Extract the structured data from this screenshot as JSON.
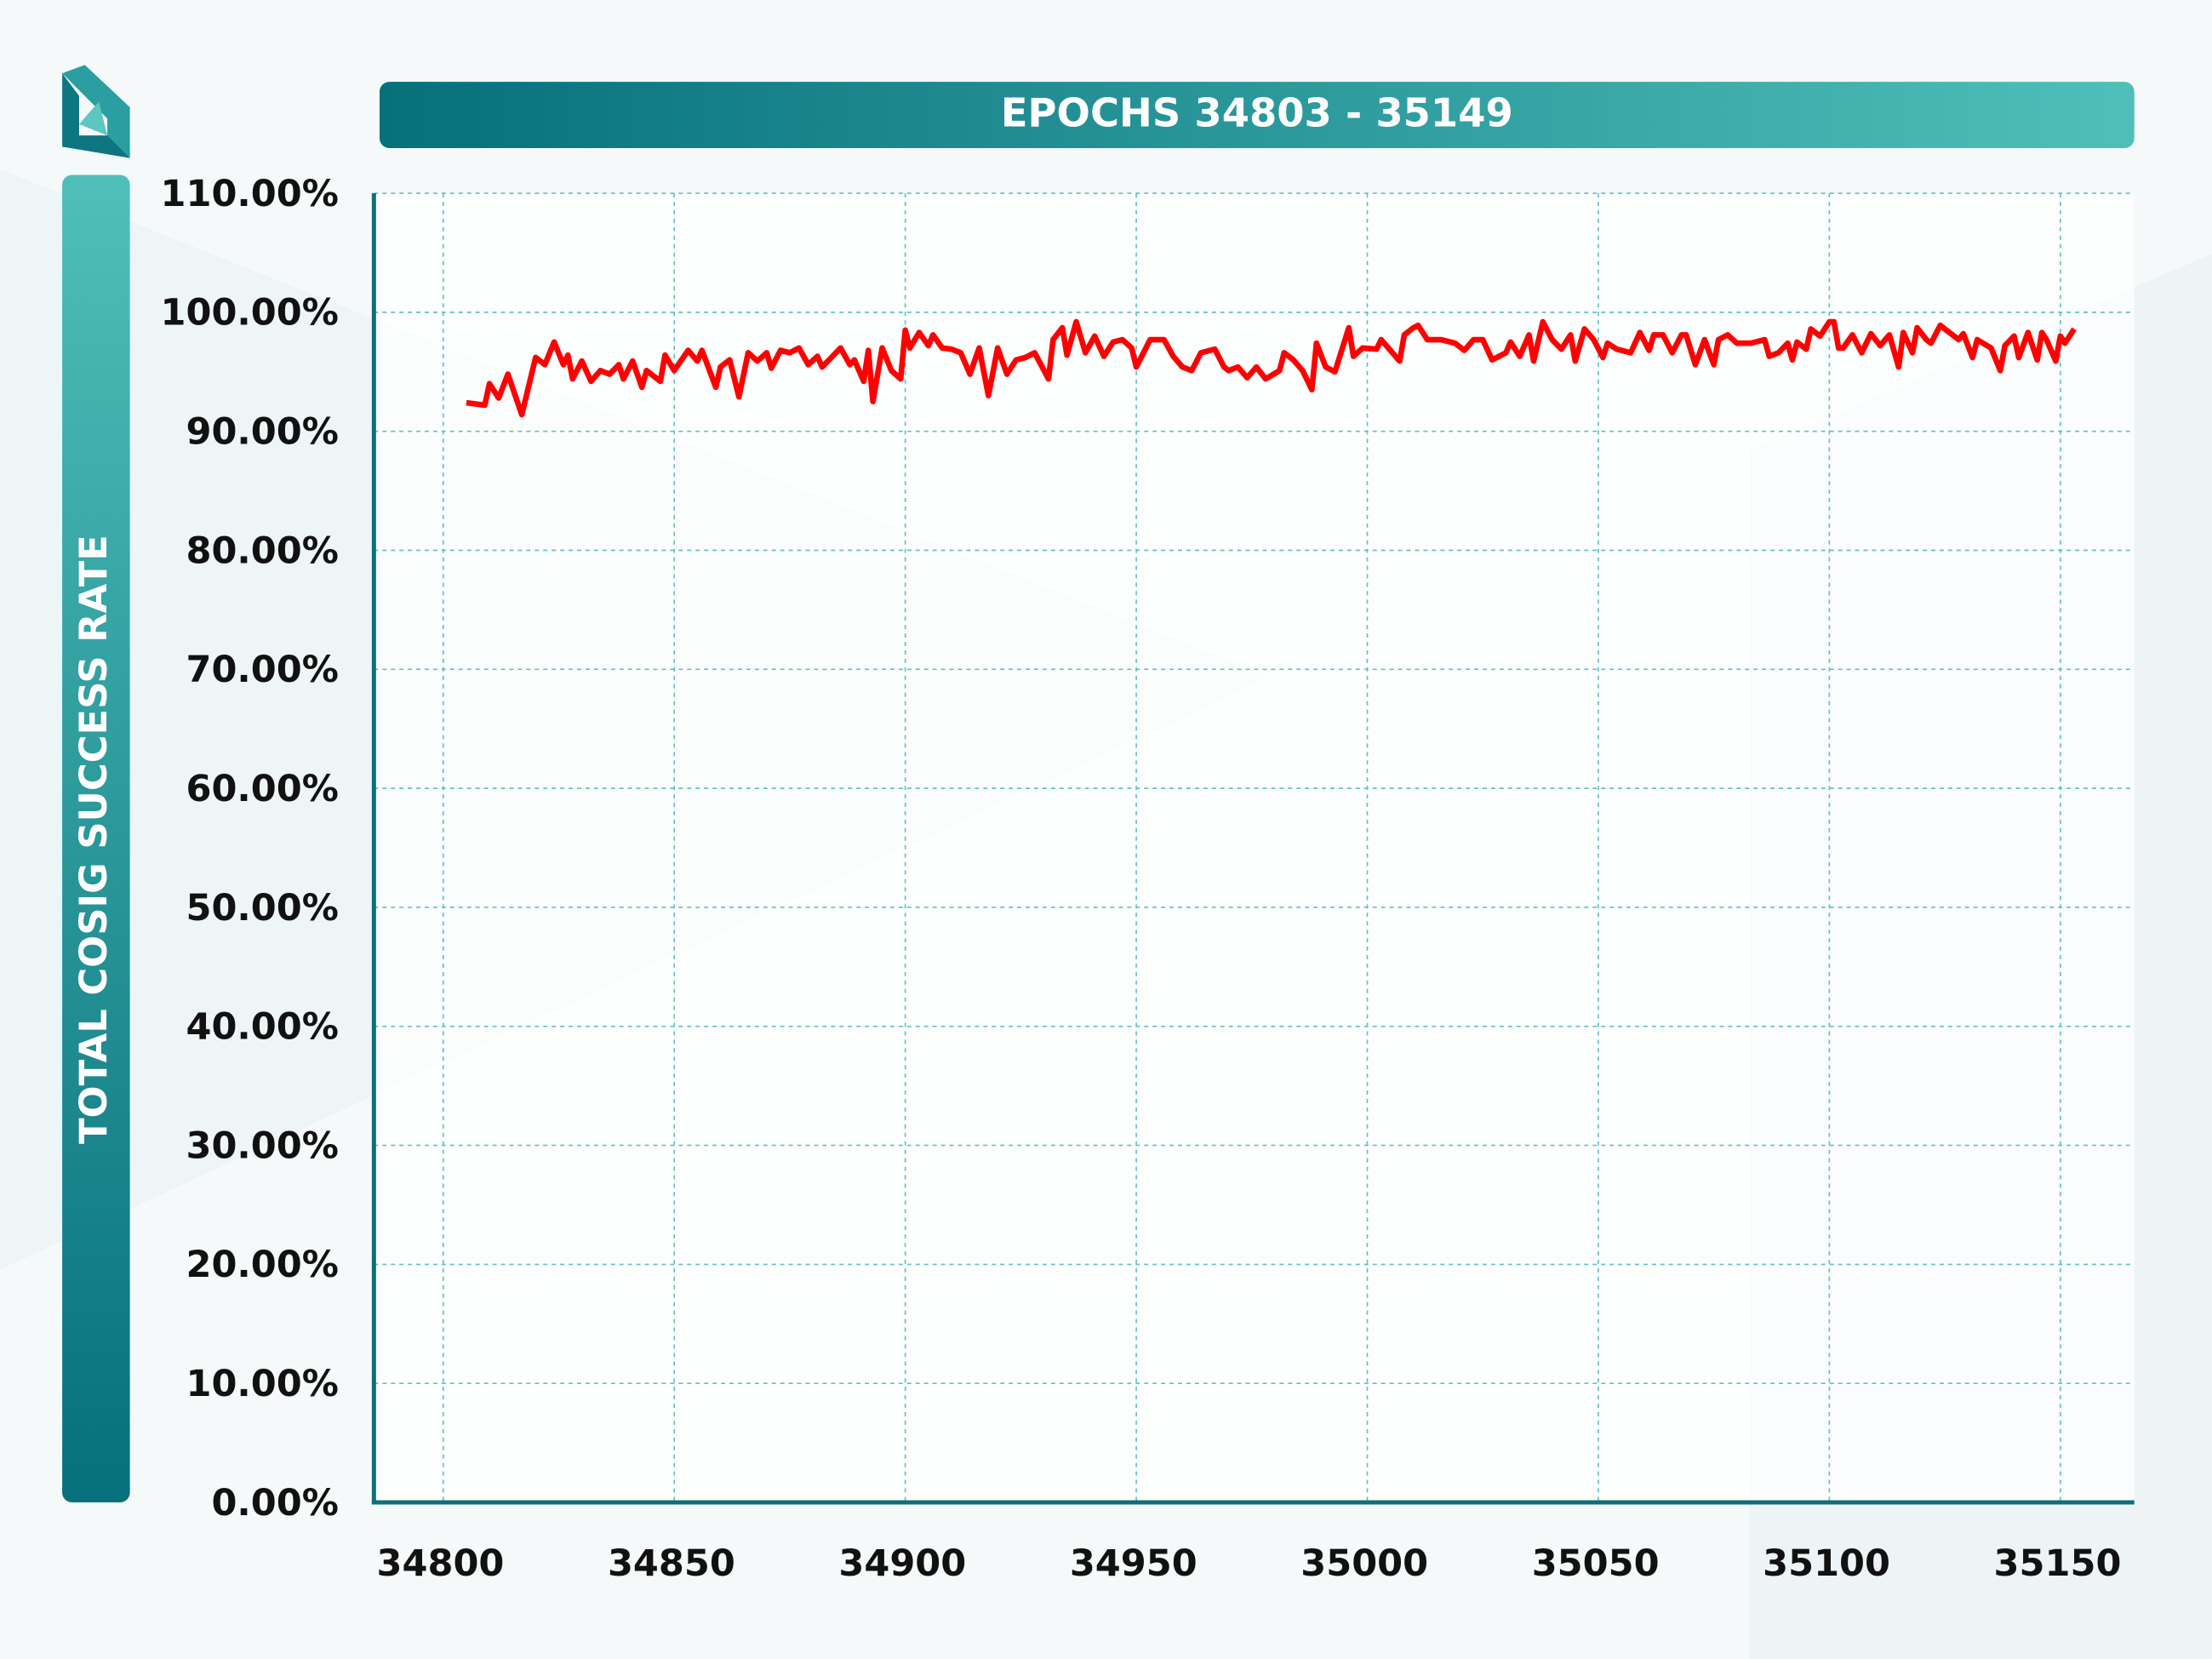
{
  "chart_data": {
    "type": "line",
    "title": "EPOCHS 34803 - 35149",
    "y_label": "TOTAL COSIG SUCCESS RATE",
    "color": "#ff0000",
    "grid": true,
    "xlim": [
      34785,
      35166
    ],
    "xticks": [
      34800,
      34850,
      34900,
      34950,
      35000,
      35050,
      35100,
      35150
    ],
    "ylim": [
      0,
      110
    ],
    "yticks": [
      {
        "value": 0,
        "label": "0.00%"
      },
      {
        "value": 10,
        "label": "10.00%"
      },
      {
        "value": 20,
        "label": "20.00%"
      },
      {
        "value": 30,
        "label": "30.00%"
      },
      {
        "value": 40,
        "label": "40.00%"
      },
      {
        "value": 50,
        "label": "50.00%"
      },
      {
        "value": 60,
        "label": "60.00%"
      },
      {
        "value": 70,
        "label": "70.00%"
      },
      {
        "value": 80,
        "label": "80.00%"
      },
      {
        "value": 90,
        "label": "90.00%"
      },
      {
        "value": 100,
        "label": "100.00%"
      },
      {
        "value": 110,
        "label": "110.00%"
      }
    ],
    "x": [
      34805,
      34809,
      34810,
      34812,
      34814,
      34817,
      34820,
      34822,
      34824,
      34826,
      34827,
      34828,
      34830,
      34832,
      34834,
      34836,
      34838,
      34839,
      34841,
      34843,
      34844,
      34847,
      34848,
      34850,
      34853,
      34855,
      34856,
      34859,
      34860,
      34862,
      34864,
      34866,
      34868,
      34870,
      34871,
      34873,
      34875,
      34877,
      34879,
      34881,
      34882,
      34884,
      34886,
      34888,
      34889,
      34891,
      34892,
      34893,
      34895,
      34897,
      34899,
      34900,
      34901,
      34903,
      34905,
      34906,
      34908,
      34910,
      34912,
      34914,
      34916,
      34918,
      34920,
      34922,
      34924,
      34926,
      34928,
      34931,
      34932,
      34934,
      34935,
      34937,
      34939,
      34941,
      34943,
      34945,
      34947,
      34949,
      34950,
      34953,
      34956,
      34958,
      34960,
      34962,
      34964,
      34967,
      34969,
      34970,
      34972,
      34974,
      34976,
      34978,
      34981,
      34982,
      34984,
      34986,
      34988,
      34989,
      34991,
      34993,
      34996,
      34997,
      34999,
      35002,
      35003,
      35005,
      35007,
      35008,
      35010,
      35011,
      35013,
      35016,
      35019,
      35021,
      35023,
      35025,
      35027,
      35030,
      35031,
      35033,
      35035,
      35036,
      35038,
      35040,
      35042,
      35044,
      35045,
      35047,
      35049,
      35051,
      35052,
      35054,
      35057,
      35059,
      35061,
      35062,
      35064,
      35066,
      35068,
      35069,
      35071,
      35073,
      35075,
      35076,
      35078,
      35080,
      35083,
      35086,
      35087,
      35089,
      35091,
      35092,
      35093,
      35095,
      35096,
      35098,
      35100,
      35101,
      35102,
      35103,
      35105,
      35107,
      35109,
      35111,
      35113,
      35115,
      35116,
      35118,
      35119,
      35121,
      35122,
      35124,
      35126,
      35128,
      35129,
      35131,
      35132,
      35135,
      35137,
      35138,
      35140,
      35141,
      35143,
      35145,
      35146,
      35147,
      35149,
      35150,
      35151,
      35153
    ],
    "values": [
      92.4,
      92.2,
      94.0,
      92.8,
      94.8,
      91.4,
      96.2,
      95.6,
      97.5,
      95.6,
      96.4,
      94.4,
      95.9,
      94.2,
      95.1,
      94.8,
      95.6,
      94.4,
      95.9,
      93.7,
      95.1,
      94.2,
      96.4,
      95.1,
      96.8,
      95.9,
      96.8,
      93.7,
      95.4,
      96.0,
      92.9,
      96.6,
      95.9,
      96.6,
      95.3,
      96.8,
      96.6,
      97.0,
      95.6,
      96.3,
      95.4,
      96.2,
      97.0,
      95.6,
      96.0,
      94.2,
      96.8,
      92.5,
      97.0,
      95.1,
      94.4,
      98.5,
      97.0,
      98.3,
      97.2,
      98.1,
      97.0,
      96.9,
      96.6,
      94.8,
      97.0,
      93.0,
      97.0,
      94.8,
      96.0,
      96.2,
      96.6,
      94.4,
      97.7,
      98.7,
      96.4,
      99.2,
      96.6,
      98.0,
      96.3,
      97.5,
      97.7,
      97.0,
      95.4,
      97.7,
      97.7,
      96.3,
      95.4,
      95.1,
      96.6,
      96.9,
      95.4,
      95.1,
      95.4,
      94.5,
      95.4,
      94.4,
      95.1,
      96.6,
      96.0,
      95.1,
      93.5,
      97.4,
      95.4,
      95.0,
      98.7,
      96.3,
      97.0,
      96.9,
      97.7,
      96.8,
      95.9,
      98.1,
      98.7,
      98.9,
      97.7,
      97.7,
      97.4,
      96.8,
      97.7,
      97.7,
      96.0,
      96.6,
      97.5,
      96.3,
      98.1,
      95.9,
      99.2,
      97.7,
      96.9,
      98.1,
      95.9,
      98.6,
      97.7,
      96.2,
      97.4,
      96.9,
      96.6,
      98.3,
      96.8,
      98.1,
      98.1,
      96.6,
      98.1,
      98.1,
      95.6,
      97.7,
      95.6,
      97.7,
      98.1,
      97.4,
      97.4,
      97.7,
      96.3,
      96.6,
      97.4,
      96.0,
      97.5,
      96.9,
      98.6,
      98.0,
      99.2,
      99.2,
      97.0,
      97.0,
      98.1,
      96.6,
      98.2,
      97.2,
      98.1,
      95.4,
      98.3,
      96.6,
      98.7,
      97.7,
      97.4,
      98.9,
      98.3,
      97.7,
      98.2,
      96.2,
      97.7,
      97.0,
      95.1,
      97.2,
      98.0,
      96.2,
      98.3,
      96.0,
      98.3,
      97.7,
      95.9,
      98.0,
      97.4,
      98.6
    ]
  }
}
